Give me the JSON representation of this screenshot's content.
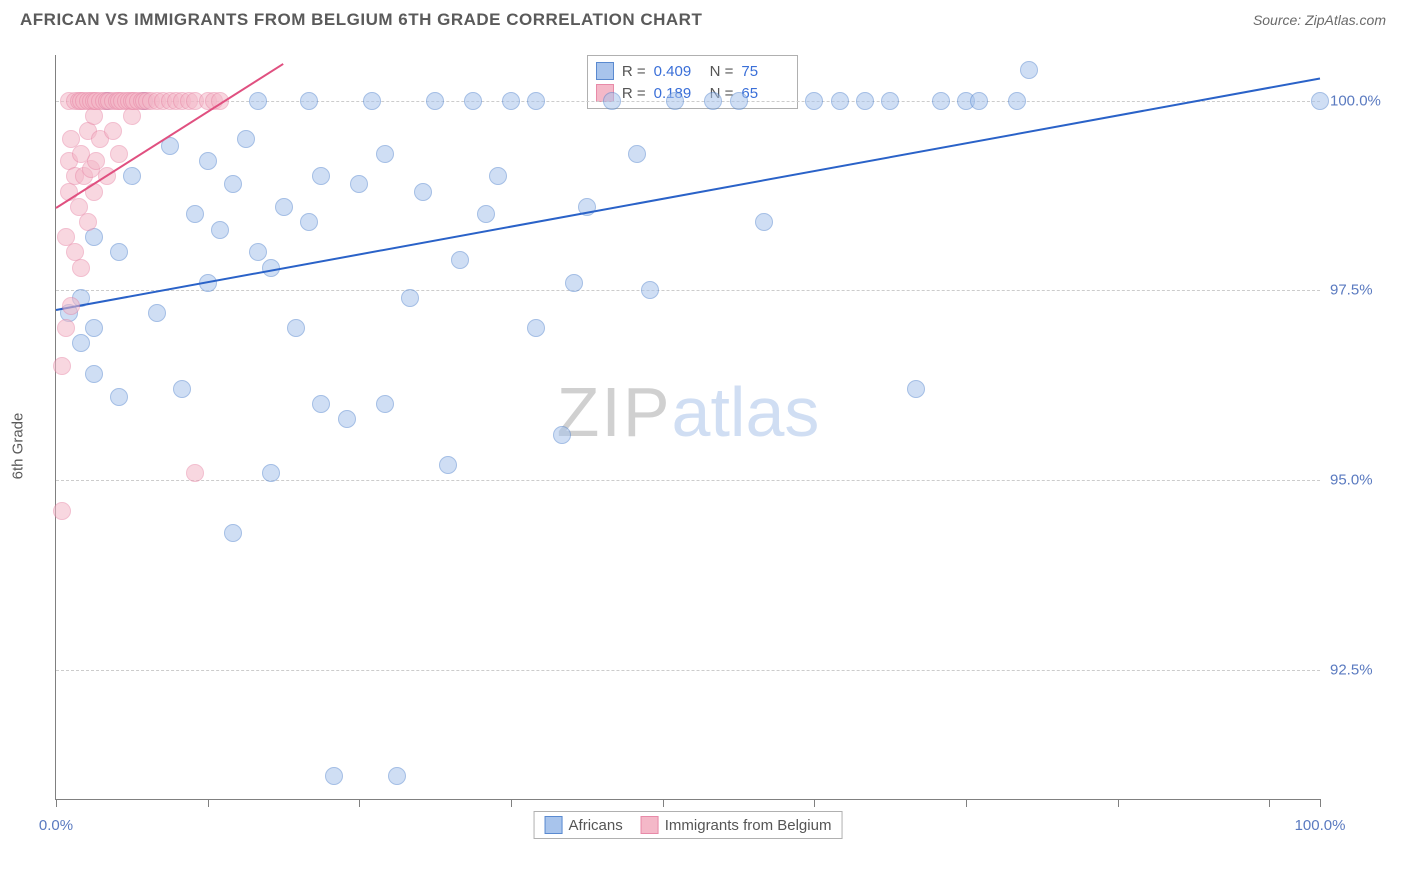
{
  "title": "AFRICAN VS IMMIGRANTS FROM BELGIUM 6TH GRADE CORRELATION CHART",
  "source": "Source: ZipAtlas.com",
  "ylabel": "6th Grade",
  "watermark": {
    "part1": "ZIP",
    "part2": "atlas"
  },
  "chart": {
    "type": "scatter",
    "background_color": "#ffffff",
    "grid_color": "#cccccc",
    "axis_color": "#808080",
    "label_color": "#5a7ac0",
    "xlim": [
      0,
      100
    ],
    "ylim": [
      90.8,
      100.6
    ],
    "xticks": [
      0,
      12,
      24,
      36,
      48,
      60,
      72,
      84,
      96,
      100
    ],
    "xtick_labels_shown": {
      "0": "0.0%",
      "100": "100.0%"
    },
    "yticks": [
      92.5,
      95.0,
      97.5,
      100.0
    ],
    "ytick_labels": [
      "92.5%",
      "95.0%",
      "97.5%",
      "100.0%"
    ],
    "marker_radius": 9,
    "marker_opacity": 0.55,
    "series": [
      {
        "name": "Africans",
        "color_fill": "#a8c4ec",
        "color_stroke": "#5a8ad0",
        "R": "0.409",
        "N": "75",
        "trend": {
          "x1": 0,
          "y1": 97.25,
          "x2": 100,
          "y2": 100.3,
          "color": "#2a62c8",
          "width": 2
        },
        "points": [
          [
            1,
            97.2
          ],
          [
            2,
            96.8
          ],
          [
            2,
            97.4
          ],
          [
            3,
            97.0
          ],
          [
            3,
            96.4
          ],
          [
            3,
            98.2
          ],
          [
            4,
            100.0
          ],
          [
            5,
            96.1
          ],
          [
            5,
            98.0
          ],
          [
            6,
            99.0
          ],
          [
            7,
            100.0
          ],
          [
            8,
            97.2
          ],
          [
            9,
            99.4
          ],
          [
            10,
            96.2
          ],
          [
            11,
            98.5
          ],
          [
            12,
            99.2
          ],
          [
            12,
            97.6
          ],
          [
            13,
            98.3
          ],
          [
            14,
            94.3
          ],
          [
            14,
            98.9
          ],
          [
            15,
            99.5
          ],
          [
            16,
            98.0
          ],
          [
            16,
            100.0
          ],
          [
            17,
            95.1
          ],
          [
            17,
            97.8
          ],
          [
            18,
            98.6
          ],
          [
            19,
            97.0
          ],
          [
            20,
            98.4
          ],
          [
            20,
            100.0
          ],
          [
            21,
            96.0
          ],
          [
            21,
            99.0
          ],
          [
            22,
            91.1
          ],
          [
            23,
            95.8
          ],
          [
            24,
            98.9
          ],
          [
            25,
            100.0
          ],
          [
            26,
            96.0
          ],
          [
            26,
            99.3
          ],
          [
            27,
            91.1
          ],
          [
            28,
            97.4
          ],
          [
            29,
            98.8
          ],
          [
            30,
            100.0
          ],
          [
            31,
            95.2
          ],
          [
            32,
            97.9
          ],
          [
            33,
            100.0
          ],
          [
            34,
            98.5
          ],
          [
            35,
            99.0
          ],
          [
            36,
            100.0
          ],
          [
            38,
            97.0
          ],
          [
            38,
            100.0
          ],
          [
            40,
            95.6
          ],
          [
            41,
            97.6
          ],
          [
            42,
            98.6
          ],
          [
            44,
            100.0
          ],
          [
            46,
            99.3
          ],
          [
            47,
            97.5
          ],
          [
            49,
            100.0
          ],
          [
            52,
            100.0
          ],
          [
            54,
            100.0
          ],
          [
            56,
            98.4
          ],
          [
            60,
            100.0
          ],
          [
            62,
            100.0
          ],
          [
            64,
            100.0
          ],
          [
            66,
            100.0
          ],
          [
            68,
            96.2
          ],
          [
            70,
            100.0
          ],
          [
            72,
            100.0
          ],
          [
            73,
            100.0
          ],
          [
            76,
            100.0
          ],
          [
            77,
            100.4
          ],
          [
            100,
            100.0
          ]
        ]
      },
      {
        "name": "Immigrants from Belgium",
        "color_fill": "#f4b8c8",
        "color_stroke": "#e88aa8",
        "R": "0.189",
        "N": "65",
        "trend": {
          "x1": 0,
          "y1": 98.6,
          "x2": 18,
          "y2": 100.5,
          "color": "#e05080",
          "width": 2
        },
        "points": [
          [
            0.5,
            94.6
          ],
          [
            0.5,
            96.5
          ],
          [
            0.8,
            97.0
          ],
          [
            0.8,
            98.2
          ],
          [
            1,
            98.8
          ],
          [
            1,
            99.2
          ],
          [
            1,
            100.0
          ],
          [
            1.2,
            97.3
          ],
          [
            1.2,
            99.5
          ],
          [
            1.5,
            98.0
          ],
          [
            1.5,
            99.0
          ],
          [
            1.5,
            100.0
          ],
          [
            1.8,
            98.6
          ],
          [
            1.8,
            100.0
          ],
          [
            2,
            97.8
          ],
          [
            2,
            99.3
          ],
          [
            2,
            100.0
          ],
          [
            2.2,
            99.0
          ],
          [
            2.2,
            100.0
          ],
          [
            2.5,
            98.4
          ],
          [
            2.5,
            99.6
          ],
          [
            2.5,
            100.0
          ],
          [
            2.8,
            99.1
          ],
          [
            2.8,
            100.0
          ],
          [
            3,
            98.8
          ],
          [
            3,
            99.8
          ],
          [
            3,
            100.0
          ],
          [
            3.2,
            99.2
          ],
          [
            3.2,
            100.0
          ],
          [
            3.5,
            99.5
          ],
          [
            3.5,
            100.0
          ],
          [
            3.8,
            100.0
          ],
          [
            4,
            99.0
          ],
          [
            4,
            100.0
          ],
          [
            4.2,
            100.0
          ],
          [
            4.5,
            99.6
          ],
          [
            4.5,
            100.0
          ],
          [
            4.8,
            100.0
          ],
          [
            5,
            99.3
          ],
          [
            5,
            100.0
          ],
          [
            5.2,
            100.0
          ],
          [
            5.5,
            100.0
          ],
          [
            5.8,
            100.0
          ],
          [
            6,
            99.8
          ],
          [
            6,
            100.0
          ],
          [
            6.2,
            100.0
          ],
          [
            6.5,
            100.0
          ],
          [
            6.8,
            100.0
          ],
          [
            7,
            100.0
          ],
          [
            7.2,
            100.0
          ],
          [
            7.5,
            100.0
          ],
          [
            8,
            100.0
          ],
          [
            8.5,
            100.0
          ],
          [
            9,
            100.0
          ],
          [
            9.5,
            100.0
          ],
          [
            10,
            100.0
          ],
          [
            10.5,
            100.0
          ],
          [
            11,
            100.0
          ],
          [
            11,
            95.1
          ],
          [
            12,
            100.0
          ],
          [
            12.5,
            100.0
          ],
          [
            13,
            100.0
          ]
        ]
      }
    ]
  },
  "stats_labels": {
    "R": "R =",
    "N": "N ="
  },
  "legend": {
    "items": [
      "Africans",
      "Immigrants from Belgium"
    ]
  }
}
